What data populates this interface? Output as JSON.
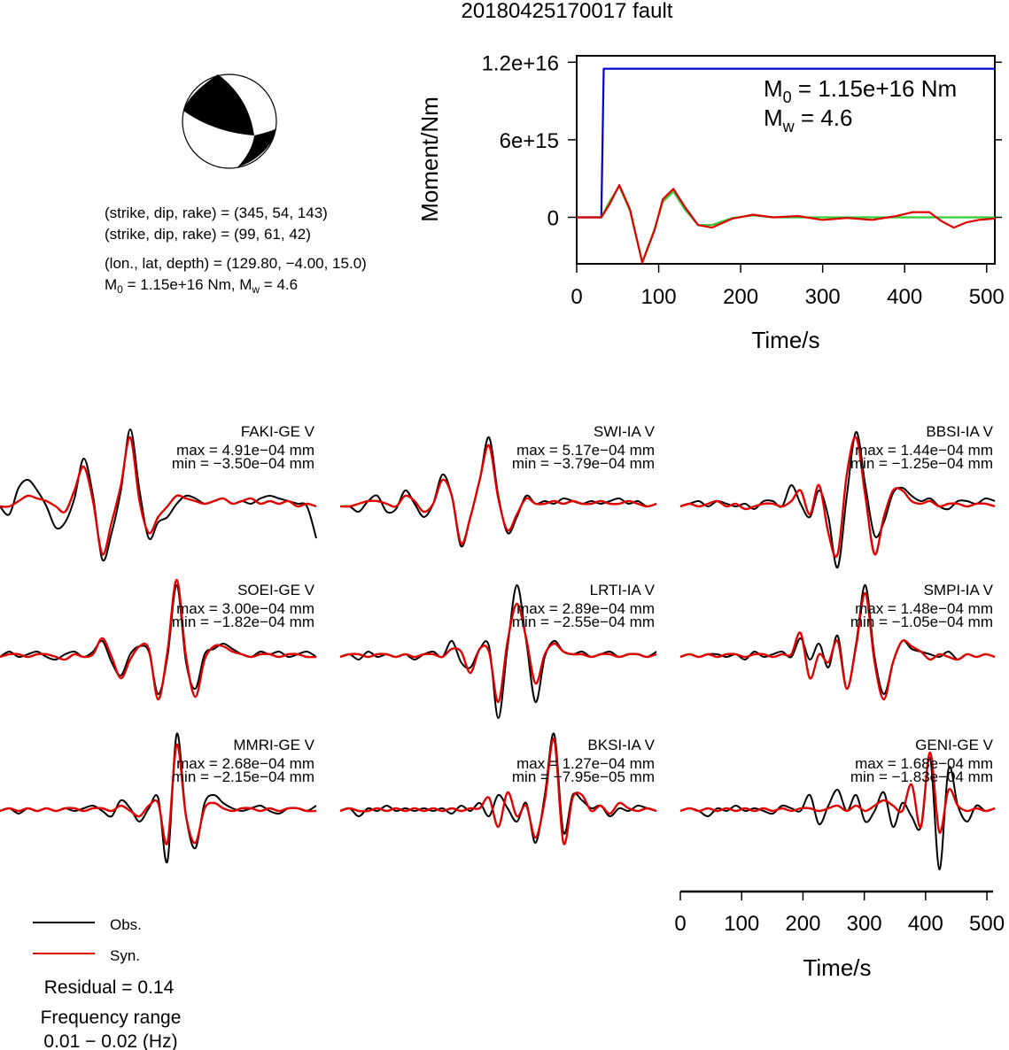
{
  "title": "20180425170017 fault",
  "mechanism": {
    "line1": "(strike, dip, rake) = (345, 54, 143)",
    "line2": "(strike, dip, rake) = (99, 61, 42)",
    "line3": "(lon., lat, depth) = (129.80, −4.00, 15.0)",
    "m0_text": "1.15e+16 Nm",
    "mw_text": "4.6"
  },
  "colors": {
    "obs": "#000000",
    "syn": "#e00000",
    "moment": "#0000cc",
    "stf": "#33cc33"
  },
  "chart_data": [
    {
      "type": "line",
      "name": "moment-rate",
      "xlabel": "Time/s",
      "ylabel": "Moment/Nm",
      "xlim": [
        0,
        510
      ],
      "ylim": [
        -3600000000000000.0,
        1.25e+16
      ],
      "xticks": [
        "0",
        "100",
        "200",
        "300",
        "400",
        "500"
      ],
      "yticks": [
        "0",
        "6e+15",
        "1.2e+16"
      ],
      "annotation": {
        "m0_value": "1.15e+16 Nm",
        "mw_value": "4.6"
      },
      "series": [
        {
          "color": "blue",
          "x": [
            0,
            30,
            33,
            35,
            510
          ],
          "y": [
            0,
            0,
            1.15e+16,
            1.15e+16,
            1.15e+16
          ]
        },
        {
          "color": "green",
          "x": [
            0,
            30,
            40,
            52,
            65,
            80,
            95,
            105,
            118,
            132,
            148,
            165,
            190,
            215,
            240,
            270,
            300,
            510
          ],
          "y": [
            0,
            0,
            1200000000000000.0,
            2400000000000000.0,
            500000000000000.0,
            -3500000000000000.0,
            -900000000000000.0,
            1200000000000000.0,
            2000000000000000.0,
            600000000000000.0,
            -600000000000000.0,
            -600000000000000.0,
            -50000000000000.0,
            150000000000000.0,
            0,
            0,
            0,
            0
          ]
        },
        {
          "color": "red",
          "x": [
            0,
            30,
            40,
            52,
            65,
            80,
            95,
            105,
            118,
            132,
            148,
            165,
            190,
            215,
            240,
            270,
            300,
            330,
            360,
            390,
            410,
            430,
            445,
            460,
            475,
            490,
            510
          ],
          "y": [
            0,
            0,
            1000000000000000.0,
            2500000000000000.0,
            600000000000000.0,
            -3500000000000000.0,
            -1000000000000000.0,
            1400000000000000.0,
            2200000000000000.0,
            800000000000000.0,
            -600000000000000.0,
            -800000000000000.0,
            -100000000000000.0,
            200000000000000.0,
            0,
            100000000000000.0,
            -200000000000000.0,
            -50000000000000.0,
            -200000000000000.0,
            100000000000000.0,
            400000000000000.0,
            400000000000000.0,
            -300000000000000.0,
            -800000000000000.0,
            -400000000000000.0,
            -200000000000000.0,
            -100000000000000.0
          ]
        }
      ]
    },
    {
      "type": "line",
      "name": "waveforms",
      "xlabel": "Time/s",
      "xlim": [
        0,
        510
      ],
      "xticks": [
        "0",
        "100",
        "200",
        "300",
        "400",
        "500"
      ],
      "legend": [
        "Obs.",
        "Syn."
      ],
      "stations": [
        {
          "label": "FAKI-GE V",
          "max": "max = 4.91e−04 mm",
          "min": "min = −3.50e−04 mm",
          "obs": [
            0,
            -0.15,
            0.35,
            0.5,
            0.3,
            0,
            -0.4,
            -0.3,
            0.15,
            0.9,
            0.2,
            -1.0,
            -0.5,
            0.3,
            1.45,
            0.3,
            -0.6,
            -0.3,
            -0.2,
            0.05,
            0.2,
            0.15,
            0.05,
            0.1,
            0.15,
            0.05,
            0.1,
            0.05,
            0.15,
            0.2,
            0.15,
            0.1,
            0.05,
            0.0,
            -0.6
          ],
          "syn": [
            0,
            0,
            0.1,
            0.2,
            0.15,
            0.1,
            0.0,
            -0.1,
            0.3,
            0.75,
            0.1,
            -0.9,
            -0.3,
            0.4,
            1.3,
            0.1,
            -0.5,
            -0.2,
            0.0,
            0.2,
            0.15,
            0.1,
            0.05,
            0.1,
            0.15,
            0.05,
            0.1,
            0.15,
            0.05,
            0.1,
            0.05,
            0.1,
            0.0,
            0.05,
            0.0
          ]
        },
        {
          "label": "SWI-IA V",
          "max": "max = 5.17e−04 mm",
          "min": "min = −3.79e−04 mm",
          "obs": [
            0,
            0,
            -0.1,
            0.1,
            0.2,
            -0.1,
            -0.05,
            0.3,
            0.05,
            -0.2,
            0.05,
            0.6,
            0.2,
            -0.75,
            -0.2,
            0.5,
            1.3,
            0.2,
            -0.5,
            -0.2,
            0.2,
            0.05,
            0.1,
            0.05,
            0.15,
            0.1,
            0.05,
            0.1,
            0.05,
            0.1,
            0.15,
            0.05,
            0.1,
            0.0,
            0.05
          ],
          "syn": [
            0,
            0,
            0.05,
            0.1,
            0.1,
            0.05,
            0.0,
            0.2,
            0.1,
            -0.1,
            0.05,
            0.5,
            0.2,
            -0.7,
            -0.2,
            0.5,
            1.15,
            0.15,
            -0.45,
            -0.15,
            0.15,
            0.05,
            0.05,
            0.1,
            0.05,
            0.1,
            0.05,
            0.05,
            0.1,
            0.05,
            0.05,
            0.1,
            0.05,
            0.0,
            0.05
          ]
        },
        {
          "label": "BBSI-IA V",
          "max": "max = 1.44e−04 mm",
          "min": "min = −1.25e−04 mm",
          "obs": [
            0,
            0.05,
            0.1,
            0.0,
            0.1,
            0.05,
            0.0,
            0.05,
            -0.05,
            0.1,
            0.1,
            0.0,
            0.4,
            0.05,
            -0.2,
            0.3,
            -0.2,
            -1.15,
            0.2,
            1.4,
            0.4,
            -0.55,
            -0.3,
            0.25,
            0.35,
            0.2,
            0.1,
            0.15,
            0.0,
            -0.05,
            0.1,
            0.1,
            0.05,
            0.15,
            0.1
          ],
          "syn": [
            0,
            0.05,
            0.0,
            0.05,
            0.1,
            0.0,
            0.05,
            -0.05,
            0.0,
            0.05,
            0.05,
            0.0,
            0.1,
            0.3,
            -0.15,
            0.4,
            -0.5,
            -0.9,
            0.6,
            1.3,
            0.2,
            -0.9,
            -0.2,
            0.3,
            0.3,
            0.1,
            0.05,
            0.1,
            0.0,
            0.05,
            0.05,
            0.0,
            0.05,
            0.05,
            0.0
          ]
        },
        {
          "label": "SOEI-GE V",
          "max": "max = 3.00e−04 mm",
          "min": "min = −1.82e−04 mm",
          "obs": [
            0,
            0.1,
            0.0,
            0.05,
            0.1,
            0.0,
            -0.05,
            0.05,
            0.1,
            0.0,
            0.1,
            0.3,
            -0.1,
            -0.35,
            0.05,
            0.2,
            0.1,
            -0.7,
            0.0,
            1.35,
            -0.1,
            -0.6,
            0.05,
            0.15,
            0.25,
            0.15,
            0.05,
            0.0,
            0.1,
            0.05,
            0.1,
            0.0,
            0.05,
            0.1,
            0.0
          ],
          "syn": [
            0,
            0.05,
            0.05,
            0.0,
            0.05,
            0.05,
            0.0,
            -0.05,
            0.05,
            0.0,
            0.05,
            0.35,
            0.0,
            -0.4,
            -0.05,
            0.2,
            0.15,
            -0.8,
            0.1,
            1.45,
            0.0,
            -0.75,
            -0.05,
            0.2,
            0.2,
            0.1,
            0.05,
            0.0,
            0.05,
            0.05,
            0.0,
            0.05,
            0.05,
            0.0,
            0.0
          ]
        },
        {
          "label": "LRTI-IA V",
          "max": "max = 2.89e−04 mm",
          "min": "min = −2.55e−04 mm",
          "obs": [
            0,
            0.05,
            -0.05,
            0.1,
            0.0,
            0.05,
            0.0,
            0.05,
            -0.05,
            0.05,
            0.1,
            0.0,
            0.3,
            -0.1,
            -0.2,
            0.15,
            0.2,
            -1.15,
            0.2,
            1.35,
            0.3,
            -0.85,
            0.0,
            0.3,
            0.1,
            0.05,
            0.1,
            0.0,
            0.05,
            0.1,
            0.0,
            0.05,
            0.05,
            0.0,
            0.1
          ],
          "syn": [
            0,
            0.05,
            0.05,
            0.0,
            0.05,
            0.05,
            0.0,
            0.05,
            0.0,
            0.05,
            0.05,
            0.0,
            0.15,
            0.1,
            -0.3,
            0.15,
            0.1,
            -0.85,
            0.3,
            1.0,
            0.35,
            -0.5,
            0.05,
            0.25,
            0.1,
            0.05,
            0.05,
            0.0,
            0.05,
            0.05,
            0.0,
            0.05,
            0.05,
            0.0,
            0.05
          ]
        },
        {
          "label": "SMPI-IA V",
          "max": "max = 1.48e−04 mm",
          "min": "min = −1.05e−04 mm",
          "obs": [
            0,
            0.05,
            0.0,
            0.05,
            0.05,
            0.0,
            0.05,
            -0.05,
            0.1,
            0.0,
            0.05,
            0.1,
            0.0,
            0.35,
            -0.05,
            0.25,
            -0.2,
            0.4,
            -0.6,
            0.25,
            1.35,
            0.0,
            -0.7,
            -0.1,
            0.3,
            0.15,
            0.1,
            0.05,
            0.0,
            0.1,
            -0.05,
            0.05,
            0.0,
            0.05,
            0.0
          ],
          "syn": [
            0,
            0.05,
            0.0,
            0.05,
            0.0,
            0.05,
            0.05,
            0.0,
            0.05,
            0.05,
            0.0,
            0.05,
            0.05,
            0.45,
            -0.4,
            0.05,
            -0.1,
            0.3,
            -0.6,
            0.2,
            1.2,
            -0.1,
            -0.8,
            -0.1,
            0.3,
            0.2,
            0.1,
            -0.05,
            0.05,
            0.0,
            -0.05,
            0.05,
            0.0,
            0.05,
            0.0
          ]
        },
        {
          "label": "MMRI-GE V",
          "max": "max = 2.68e−04 mm",
          "min": "min = −2.15e−04 mm",
          "obs": [
            0,
            0.05,
            -0.05,
            0.05,
            0.0,
            0.05,
            0.0,
            0.05,
            0.0,
            0.05,
            0.1,
            0.0,
            -0.1,
            0.2,
            0.05,
            -0.2,
            0.05,
            0.25,
            -0.95,
            1.45,
            -0.1,
            -0.7,
            0.15,
            0.3,
            0.15,
            0.05,
            0.0,
            0.05,
            0.1,
            0.0,
            -0.05,
            0.05,
            0.05,
            0.0,
            0.1
          ],
          "syn": [
            0,
            0.05,
            0.0,
            0.05,
            0.0,
            0.05,
            0.0,
            0.05,
            0.05,
            0.0,
            0.05,
            0.05,
            0.0,
            0.1,
            0.0,
            -0.1,
            0.1,
            0.15,
            -0.6,
            1.25,
            -0.1,
            -0.6,
            0.05,
            0.15,
            0.05,
            0.0,
            0.05,
            0.05,
            0.0,
            0.05,
            0.0,
            0.05,
            0.05,
            0.0,
            0.0
          ]
        },
        {
          "label": "BKSI-IA V",
          "max": "max = 1.27e−04 mm",
          "min": "min = −7.95e−05 mm",
          "obs": [
            0,
            0.05,
            -0.1,
            0.05,
            0.0,
            0.1,
            0.0,
            0.05,
            0.0,
            0.05,
            0.0,
            0.05,
            -0.05,
            0.1,
            0.0,
            0.15,
            -0.1,
            0.3,
            0.05,
            -0.2,
            0.15,
            -0.6,
            0.3,
            1.45,
            -0.4,
            0.3,
            0.2,
            0.05,
            0.1,
            -0.1,
            0.05,
            0.0,
            0.1,
            0.05,
            0.0
          ],
          "syn": [
            0,
            0.05,
            0.0,
            0.0,
            0.05,
            0.0,
            0.05,
            0.0,
            0.05,
            0.0,
            0.05,
            0.0,
            0.05,
            0.0,
            0.05,
            0.05,
            0.25,
            -0.3,
            0.35,
            -0.1,
            0.1,
            -0.5,
            0.2,
            1.35,
            -0.6,
            0.25,
            0.3,
            0.0,
            0.1,
            -0.05,
            0.15,
            0.05,
            0.0,
            0.05,
            0.0
          ]
        },
        {
          "label": "GENI-GE V",
          "max": "max = 1.68e−04 mm",
          "min": "min = −1.83e−04 mm",
          "obs": [
            0,
            0.05,
            0.0,
            -0.1,
            0.05,
            0.0,
            0.1,
            0.0,
            0.05,
            0.0,
            -0.05,
            0.1,
            0.05,
            0.0,
            0.3,
            -0.25,
            0.1,
            0.4,
            0.0,
            0.3,
            -0.2,
            0.0,
            0.35,
            -0.3,
            0.15,
            -0.1,
            -0.3,
            1.0,
            -1.1,
            0.8,
            0.1,
            -0.2,
            0.1,
            0.0,
            0.05
          ],
          "syn": [
            0,
            0.05,
            0.0,
            0.05,
            0.0,
            0.05,
            0.0,
            0.05,
            0.0,
            0.05,
            0.0,
            0.05,
            0.0,
            0.05,
            0.05,
            0.0,
            0.05,
            0.1,
            0.0,
            0.1,
            0.0,
            0.1,
            0.2,
            0.1,
            0.0,
            0.5,
            -0.3,
            1.1,
            -0.4,
            0.4,
            0.1,
            0.0,
            0.05,
            0.0,
            0.05
          ]
        }
      ]
    }
  ],
  "legend": {
    "obs": "Obs.",
    "syn": "Syn."
  },
  "residual": "Residual = 0.14",
  "freq_label": "Frequency range",
  "freq_value": "0.01 − 0.02 (Hz)"
}
